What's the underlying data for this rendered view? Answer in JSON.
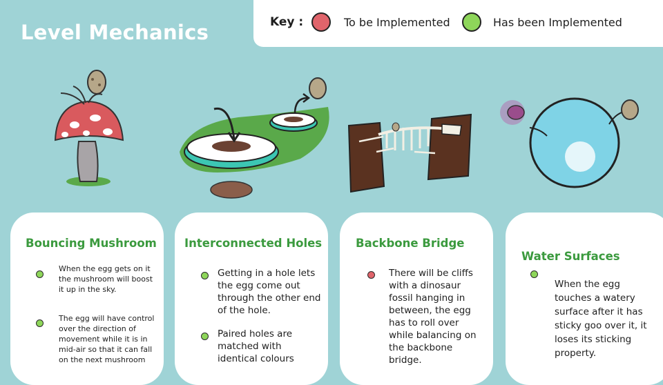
{
  "page": {
    "title": "Level Mechanics"
  },
  "key": {
    "label": "Key :",
    "to_be_implemented": "To be Implemented",
    "has_been_implemented": "Has been Implemented",
    "colors": {
      "to_be_implemented": "#e0646b",
      "has_been_implemented": "#8ed65a"
    }
  },
  "cards": [
    {
      "title": "Bouncing Mushroom",
      "illustration": "mushroom-illustration",
      "bullets": [
        {
          "status": "has_been_implemented",
          "text": "When the egg gets on it the mushroom will boost it up in the sky."
        },
        {
          "status": "has_been_implemented",
          "text": "The egg will have control over the direction of movement while it is in mid-air so that it can fall on the next mushroom"
        }
      ]
    },
    {
      "title": "Interconnected Holes",
      "illustration": "holes-illustration",
      "bullets": [
        {
          "status": "has_been_implemented",
          "text": "Getting in a hole lets the egg come out through the other end of the hole."
        },
        {
          "status": "has_been_implemented",
          "text": "Paired holes are matched with identical colours"
        }
      ]
    },
    {
      "title": "Backbone Bridge",
      "illustration": "backbone-bridge-illustration",
      "bullets": [
        {
          "status": "to_be_implemented",
          "text": "There will be cliffs with a dinosaur fossil hanging in between, the egg has to roll over while balancing on the backbone bridge."
        }
      ]
    },
    {
      "title": "Water Surfaces",
      "illustration": "water-surface-illustration",
      "bullets": [
        {
          "status": "has_been_implemented",
          "text": "When the egg touches a watery surface after it has sticky goo over it, it loses its sticking property."
        }
      ]
    }
  ]
}
